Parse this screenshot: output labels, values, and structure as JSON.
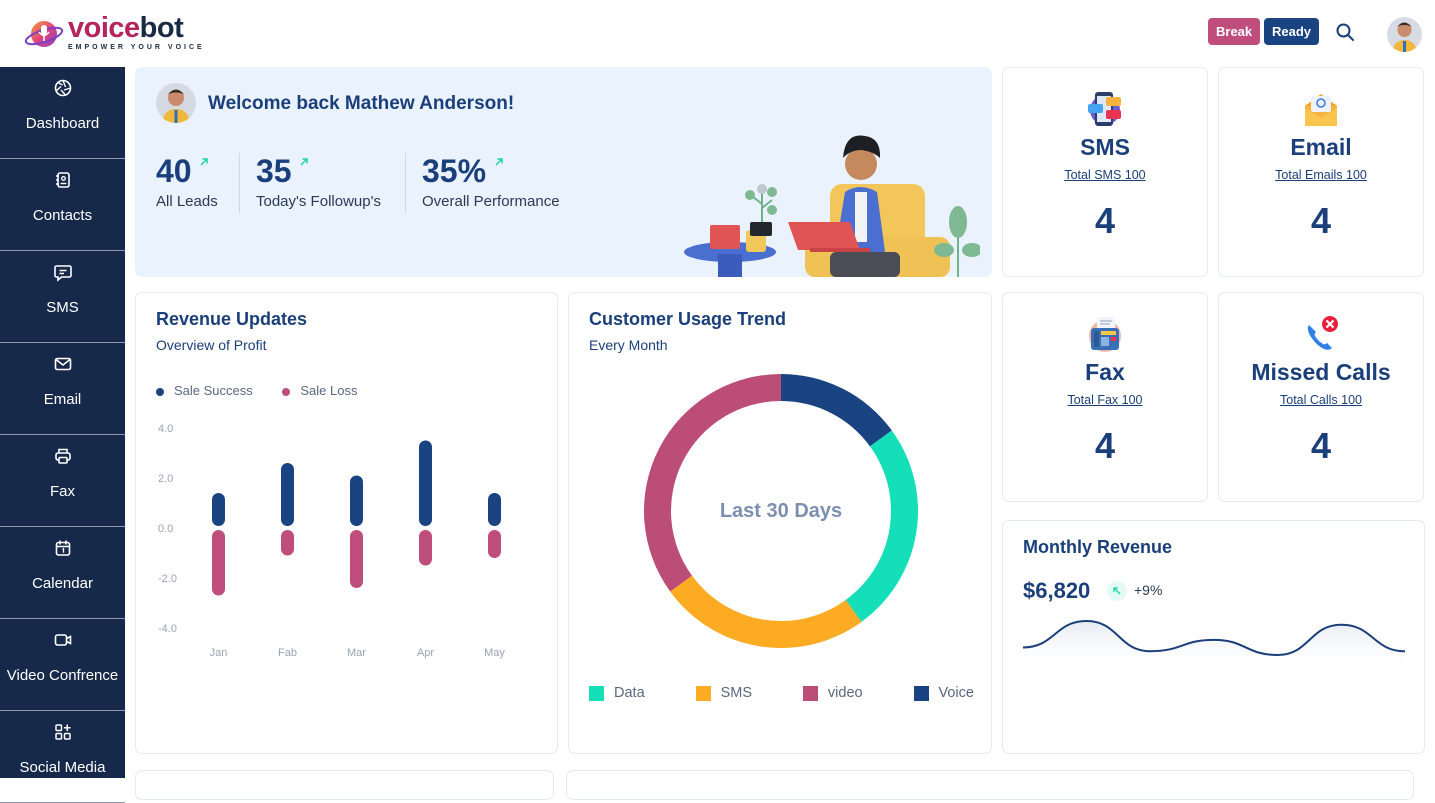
{
  "brand": {
    "name_part1": "voice",
    "name_part2": "bot",
    "tagline": "EMPOWER YOUR VOICE"
  },
  "header": {
    "break_label": "Break",
    "ready_label": "Ready",
    "icons": [
      "search-icon",
      "user-avatar"
    ],
    "colors": {
      "break": "#bf4e7c",
      "ready": "#1a4382"
    }
  },
  "sidebar": {
    "items": [
      {
        "label": "Dashboard",
        "icon": "dashboard-aperture-icon"
      },
      {
        "label": "Contacts",
        "icon": "contacts-book-icon"
      },
      {
        "label": "SMS",
        "icon": "message-icon"
      },
      {
        "label": "Email",
        "icon": "mail-icon"
      },
      {
        "label": "Fax",
        "icon": "printer-icon"
      },
      {
        "label": "Calendar",
        "icon": "calendar-icon"
      },
      {
        "label": "Video Confrence",
        "icon": "video-icon"
      },
      {
        "label": "Social Media",
        "icon": "apps-add-icon"
      }
    ]
  },
  "welcome": {
    "greeting": "Welcome back Mathew Anderson!",
    "stats": [
      {
        "value": "40",
        "label": "All Leads"
      },
      {
        "value": "35",
        "label": "Today's Followup's"
      },
      {
        "value": "35%",
        "label": "Overall Performance"
      }
    ]
  },
  "summary_cards": [
    {
      "title": "SMS",
      "link": "Total SMS 100",
      "value": "4",
      "icon": "sms-chat-icon"
    },
    {
      "title": "Email",
      "link": "Total Emails 100",
      "value": "4",
      "icon": "email-envelope-icon"
    },
    {
      "title": "Fax",
      "link": "Total Fax 100",
      "value": "4",
      "icon": "fax-machine-icon"
    },
    {
      "title": "Missed Calls",
      "link": "Total Calls 100",
      "value": "4",
      "icon": "missed-call-icon"
    }
  ],
  "revenue_updates": {
    "title": "Revenue Updates",
    "subtitle": "Overview of Profit"
  },
  "usage_trend": {
    "title": "Customer Usage Trend",
    "subtitle": "Every Month",
    "center_label": "Last 30 Days"
  },
  "monthly_revenue": {
    "title": "Monthly Revenue",
    "amount": "$6,820",
    "change": "+9%"
  },
  "chart_data": [
    {
      "type": "bar",
      "title": "Revenue Updates",
      "subtitle": "Overview of Profit",
      "categories": [
        "Jan",
        "Fab",
        "Mar",
        "Apr",
        "May"
      ],
      "series": [
        {
          "name": "Sale Success",
          "color": "#1a4382",
          "values": [
            1.4,
            2.6,
            2.1,
            3.5,
            1.4
          ]
        },
        {
          "name": "Sale Loss",
          "color": "#bf4e7c",
          "values": [
            -2.7,
            -1.1,
            -2.4,
            -1.5,
            -1.2
          ]
        }
      ],
      "yticks": [
        "4.0",
        "2.0",
        "0.0",
        "-2.0",
        "-4.0"
      ],
      "ylim": [
        -4,
        4
      ],
      "xlabel": "",
      "ylabel": "",
      "legend": "top-left",
      "grid": false
    },
    {
      "type": "pie",
      "title": "Customer Usage Trend",
      "subtitle": "Every Month",
      "center_label": "Last 30 Days",
      "slices": [
        {
          "name": "Voice",
          "value": 15,
          "color": "#1a4382"
        },
        {
          "name": "Data",
          "value": 25,
          "color": "#14dfb9"
        },
        {
          "name": "SMS",
          "value": 25,
          "color": "#fdab22"
        },
        {
          "name": "video",
          "value": 35,
          "color": "#bb4d77"
        }
      ],
      "legend_order": [
        "Data",
        "SMS",
        "video",
        "Voice"
      ],
      "legend": "bottom"
    },
    {
      "type": "area",
      "title": "Monthly Revenue",
      "x": [
        0,
        1,
        2,
        3,
        4,
        5,
        6
      ],
      "values": [
        25,
        60,
        20,
        35,
        15,
        55,
        20
      ],
      "color": "#1a3f7a",
      "grid": false
    }
  ]
}
